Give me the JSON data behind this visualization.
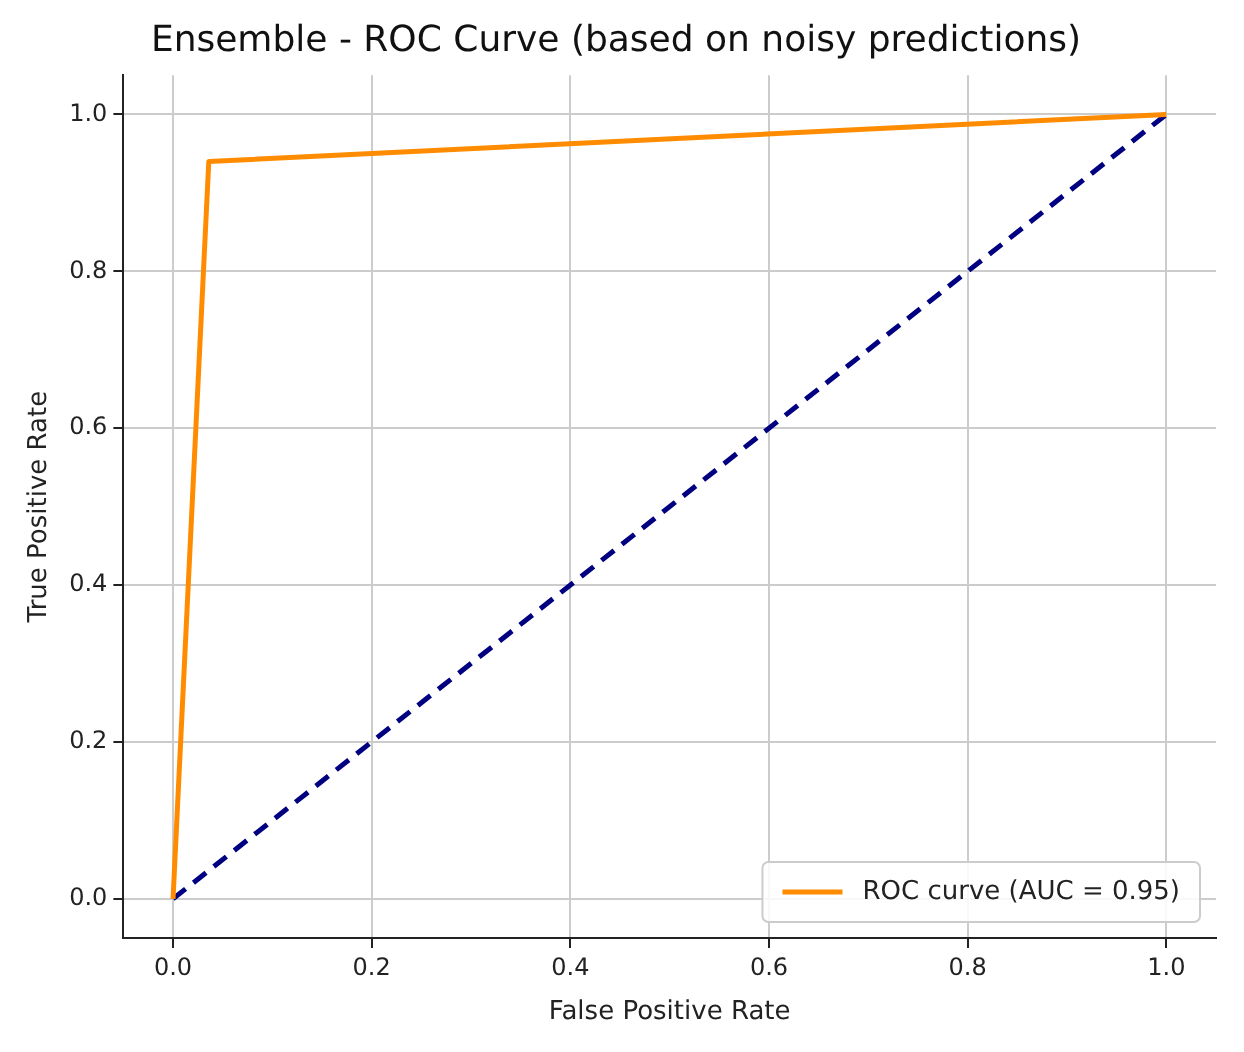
{
  "chart_data": {
    "type": "line",
    "title": "Ensemble - ROC Curve (based on noisy predictions)",
    "xlabel": "False Positive Rate",
    "ylabel": "True Positive Rate",
    "series": [
      {
        "name": "ROC curve (AUC = 0.95)",
        "color": "#ff8c00",
        "x": [
          0,
          0.036,
          1
        ],
        "values": [
          0,
          0.94,
          1
        ],
        "line_style": "solid"
      },
      {
        "color": "#000080",
        "x": [
          0,
          1
        ],
        "values": [
          0,
          1
        ],
        "line_style": "dashed"
      }
    ],
    "xlim": [
      -0.05,
      1.05
    ],
    "ylim": [
      -0.05,
      1.05
    ],
    "xticks": [
      {
        "value": 0,
        "label": "0.0"
      },
      {
        "value": 0.2,
        "label": "0.2"
      },
      {
        "value": 0.4,
        "label": "0.4"
      },
      {
        "value": 0.6,
        "label": "0.6"
      },
      {
        "value": 0.8,
        "label": "0.8"
      },
      {
        "value": 1,
        "label": "1.0"
      }
    ],
    "yticks": [
      {
        "value": 0,
        "label": "0.0"
      },
      {
        "value": 0.2,
        "label": "0.2"
      },
      {
        "value": 0.4,
        "label": "0.4"
      },
      {
        "value": 0.6,
        "label": "0.6"
      },
      {
        "value": 0.8,
        "label": "0.8"
      },
      {
        "value": 1,
        "label": "1.0"
      }
    ],
    "grid": true,
    "legend": "bottom right",
    "marker": "none"
  }
}
